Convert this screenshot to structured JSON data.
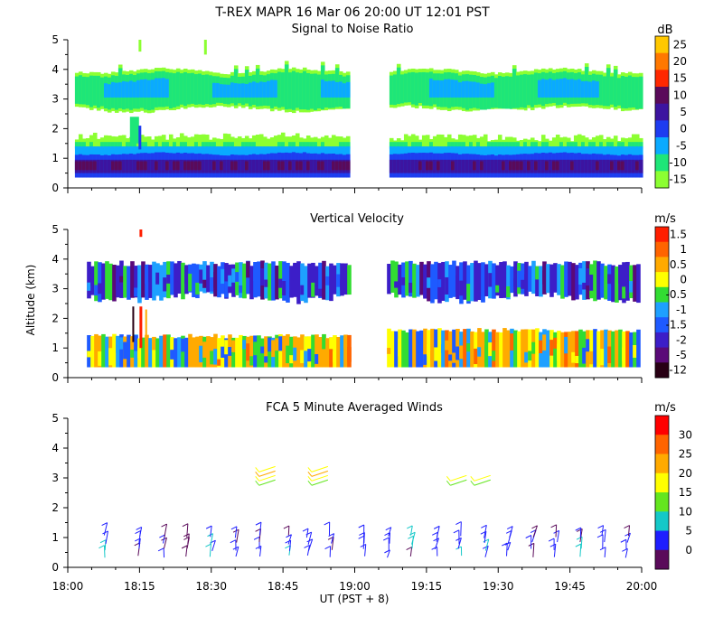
{
  "header": {
    "title": "T-REX   MAPR 16 Mar 06   20:00 UT   12:01   PST"
  },
  "xlabel": "UT  (PST + 8)",
  "ylabel": "Altitude (km)",
  "x_ticks": [
    "18:00",
    "18:15",
    "18:30",
    "18:45",
    "19:00",
    "19:15",
    "19:30",
    "19:45",
    "20:00"
  ],
  "y_ticks": [
    "0",
    "1",
    "2",
    "3",
    "4",
    "5"
  ],
  "chart_data": [
    {
      "type": "heatmap",
      "title": "Signal to Noise Ratio",
      "unit": "dB",
      "xlim": [
        "18:00",
        "20:00"
      ],
      "ylim": [
        0,
        5
      ],
      "gap": [
        "18:59",
        "19:05"
      ],
      "colorbar": {
        "labels": [
          "25",
          "20",
          "15",
          "10",
          "5",
          "0",
          "-5",
          "-10",
          "-15"
        ],
        "colors": [
          "#ffc800",
          "#ff7800",
          "#ff2800",
          "#5a0a5a",
          "#3c14a0",
          "#1e3cf0",
          "#0aaaff",
          "#1ee678",
          "#8cff32"
        ]
      },
      "layers": [
        {
          "name": "upper-layer",
          "alt_km": [
            2.6,
            4.0
          ],
          "dominant_db": -10
        },
        {
          "name": "clear-gap",
          "alt_km": [
            1.8,
            2.6
          ],
          "dominant_db": -15
        },
        {
          "name": "lower-layer",
          "alt_km": [
            0.4,
            1.7
          ],
          "dominant_db": 0
        }
      ]
    },
    {
      "type": "heatmap",
      "title": "Vertical Velocity",
      "unit": "m/s",
      "xlim": [
        "18:00",
        "20:00"
      ],
      "ylim": [
        0,
        5
      ],
      "gap": [
        "18:59",
        "19:05"
      ],
      "colorbar": {
        "labels": [
          "1.5",
          "1",
          "0.5",
          "0",
          "-0.5",
          "-1",
          "-1.5",
          "-2",
          "-5",
          "-12"
        ],
        "colors": [
          "#ff1e00",
          "#ff6400",
          "#ffaa00",
          "#ffff00",
          "#32dc32",
          "#1ea0ff",
          "#1e5aff",
          "#3c1ec8",
          "#5a0a78",
          "#280014"
        ]
      },
      "layers": [
        {
          "name": "upper-layer",
          "alt_km": [
            2.6,
            3.9
          ],
          "dominant_ms": -1.5
        },
        {
          "name": "lower-layer",
          "alt_km": [
            0.4,
            1.6
          ],
          "dominant_ms": 0.5
        }
      ]
    },
    {
      "type": "scatter",
      "title": "FCA 5 Minute Averaged Winds",
      "unit": "m/s",
      "xlim": [
        "18:00",
        "20:00"
      ],
      "ylim": [
        0,
        5
      ],
      "colorbar": {
        "labels": [
          "30",
          "25",
          "20",
          "15",
          "10",
          "5",
          "0"
        ],
        "colors": [
          "#ff0000",
          "#ff6400",
          "#ffaa00",
          "#ffff00",
          "#64e61e",
          "#14c8c8",
          "#1e1eff",
          "#5a0a5a"
        ]
      },
      "series": [
        {
          "name": "low-level barbs",
          "x_min": [
            8,
            15,
            20,
            25,
            30,
            35,
            40,
            46,
            50,
            55,
            62,
            67,
            72,
            77,
            82,
            87,
            92,
            97,
            102,
            107,
            112,
            117
          ],
          "alt_km": [
            0.3,
            1.2
          ],
          "speed_ms": 7
        },
        {
          "name": "upper barbs",
          "x_min": [
            40,
            51,
            80,
            85
          ],
          "alt_km": [
            2.7,
            3.5
          ],
          "speed_ms": 17
        }
      ]
    }
  ]
}
